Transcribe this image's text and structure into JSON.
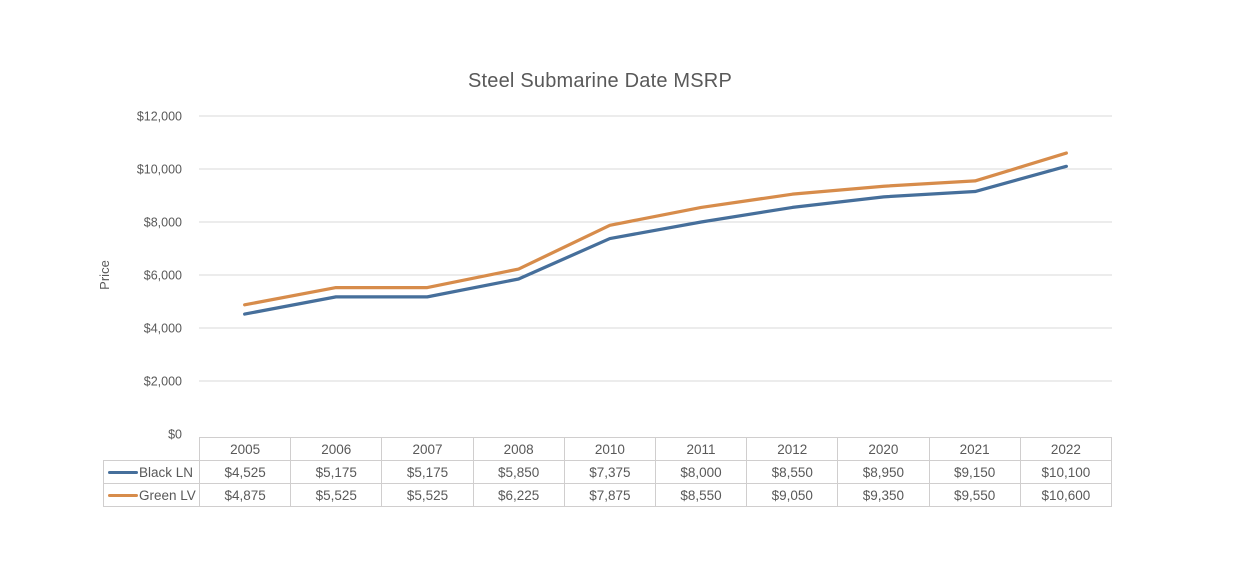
{
  "chart_data": {
    "type": "line",
    "title": "Steel Submarine Date MSRP",
    "ylabel": "Price",
    "xlabel": "",
    "categories": [
      "2005",
      "2006",
      "2007",
      "2008",
      "2010",
      "2011",
      "2012",
      "2020",
      "2021",
      "2022"
    ],
    "series": [
      {
        "name": "Black LN",
        "color": "#466F9B",
        "values": [
          4525,
          5175,
          5175,
          5850,
          7375,
          8000,
          8550,
          8950,
          9150,
          10100
        ],
        "formatted": [
          "$4,525",
          "$5,175",
          "$5,175",
          "$5,850",
          "$7,375",
          "$8,000",
          "$8,550",
          "$8,950",
          "$9,150",
          "$10,100"
        ]
      },
      {
        "name": "Green LV",
        "color": "#D78C4B",
        "values": [
          4875,
          5525,
          5525,
          6225,
          7875,
          8550,
          9050,
          9350,
          9550,
          10600
        ],
        "formatted": [
          "$4,875",
          "$5,525",
          "$5,525",
          "$6,225",
          "$7,875",
          "$8,550",
          "$9,050",
          "$9,350",
          "$9,550",
          "$10,600"
        ]
      }
    ],
    "ylim": [
      0,
      12000
    ],
    "ytick_step": 2000,
    "ytick_labels": [
      "$0",
      "$2,000",
      "$4,000",
      "$6,000",
      "$8,000",
      "$10,000",
      "$12,000"
    ],
    "grid": true,
    "gridline_color": "#D9D9D9",
    "text_color": "#595959",
    "table_border_color": "#D0CECE",
    "legend_position": "data-table-left"
  }
}
